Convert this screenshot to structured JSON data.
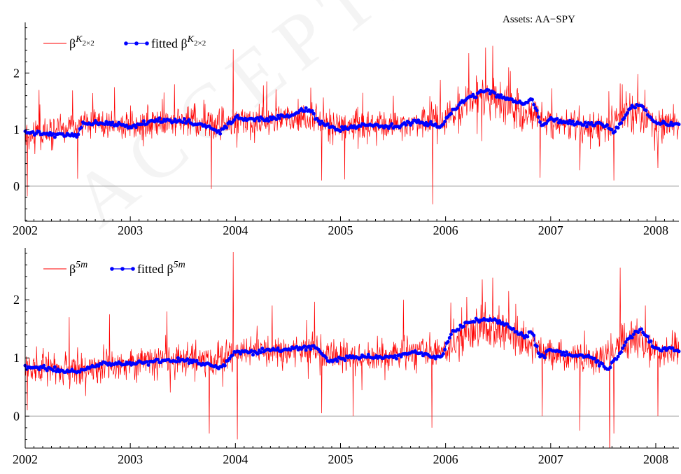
{
  "annotation": "Assets: AA−SPY",
  "watermark_text": "ACCEPTED MANUSCRIPT",
  "colors": {
    "raw": "#ff0000",
    "fitted": "#0000ff",
    "zero_line": "#999999",
    "axis": "#000000"
  },
  "chart_data": [
    {
      "type": "line",
      "title": "",
      "xlabel": "",
      "ylabel": "",
      "xlim": [
        2002.0,
        2008.22
      ],
      "ylim": [
        -0.62,
        2.82
      ],
      "x_ticks": [
        "2002",
        "2003",
        "2004",
        "2005",
        "2006",
        "2007",
        "2008"
      ],
      "y_ticks": [
        "0",
        "1",
        "2"
      ],
      "zero_line": true,
      "grid": false,
      "legend": "top-left",
      "legend_entries": [
        {
          "base": "β",
          "sup": "K",
          "sub": "2×2"
        },
        {
          "prefix": "fitted ",
          "base": "β",
          "sup": "K",
          "sub": "2×2"
        }
      ],
      "series": [
        {
          "kind": "raw",
          "x": [
            2002.0,
            2002.25,
            2002.5,
            2002.75,
            2003.0,
            2003.25,
            2003.5,
            2003.75,
            2004.0,
            2004.25,
            2004.5,
            2004.75,
            2005.0,
            2005.25,
            2005.5,
            2005.75,
            2006.0,
            2006.25,
            2006.5,
            2006.75,
            2007.0,
            2007.25,
            2007.5,
            2007.75,
            2008.0,
            2008.22
          ],
          "values": [
            0.92,
            0.95,
            1.08,
            1.1,
            1.05,
            1.12,
            1.15,
            1.08,
            1.12,
            1.15,
            1.2,
            1.18,
            1.05,
            1.1,
            1.08,
            1.12,
            1.2,
            1.5,
            1.55,
            1.3,
            1.1,
            1.05,
            1.0,
            1.35,
            1.1,
            1.1
          ],
          "spikes": [
            [
              2002.02,
              -0.18
            ],
            [
              2002.13,
              1.7
            ],
            [
              2002.5,
              0.13
            ],
            [
              2002.85,
              1.75
            ],
            [
              2003.42,
              1.8
            ],
            [
              2003.77,
              -0.05
            ],
            [
              2003.98,
              2.42
            ],
            [
              2004.3,
              1.85
            ],
            [
              2004.82,
              0.1
            ],
            [
              2005.04,
              0.12
            ],
            [
              2005.21,
              1.65
            ],
            [
              2005.88,
              -0.32
            ],
            [
              2005.95,
              1.88
            ],
            [
              2006.22,
              2.35
            ],
            [
              2006.38,
              2.45
            ],
            [
              2006.45,
              2.48
            ],
            [
              2006.6,
              2.1
            ],
            [
              2006.9,
              0.15
            ],
            [
              2007.28,
              0.28
            ],
            [
              2007.6,
              0.1
            ],
            [
              2007.68,
              1.8
            ],
            [
              2007.83,
              1.98
            ],
            [
              2008.02,
              0.32
            ],
            [
              2008.17,
              1.45
            ]
          ]
        },
        {
          "kind": "fitted",
          "x": [
            2002.0,
            2002.5,
            2002.55,
            2002.75,
            2003.0,
            2003.25,
            2003.5,
            2003.75,
            2003.85,
            2004.0,
            2004.25,
            2004.5,
            2004.7,
            2004.8,
            2005.0,
            2005.25,
            2005.5,
            2005.75,
            2005.95,
            2006.1,
            2006.25,
            2006.4,
            2006.5,
            2006.75,
            2006.82,
            2006.92,
            2007.0,
            2007.25,
            2007.5,
            2007.6,
            2007.75,
            2007.85,
            2008.0,
            2008.22
          ],
          "values": [
            0.95,
            0.9,
            1.12,
            1.12,
            1.05,
            1.15,
            1.15,
            1.05,
            0.95,
            1.2,
            1.18,
            1.25,
            1.35,
            1.12,
            1.0,
            1.08,
            1.05,
            1.15,
            1.05,
            1.4,
            1.6,
            1.7,
            1.6,
            1.45,
            1.55,
            1.05,
            1.2,
            1.1,
            1.1,
            0.95,
            1.35,
            1.45,
            1.1,
            1.1
          ]
        }
      ]
    },
    {
      "type": "line",
      "title": "",
      "xlabel": "",
      "ylabel": "",
      "xlim": [
        2002.0,
        2008.22
      ],
      "ylim": [
        -0.55,
        2.82
      ],
      "x_ticks": [
        "2002",
        "2003",
        "2004",
        "2005",
        "2006",
        "2007",
        "2008"
      ],
      "y_ticks": [
        "0",
        "1",
        "2"
      ],
      "zero_line": true,
      "grid": false,
      "legend": "top-left",
      "legend_entries": [
        {
          "base": "β",
          "sup": "5m",
          "sub": ""
        },
        {
          "prefix": "fitted ",
          "base": "β",
          "sup": "5m",
          "sub": ""
        }
      ],
      "series": [
        {
          "kind": "raw",
          "x": [
            2002.0,
            2002.25,
            2002.5,
            2002.75,
            2003.0,
            2003.25,
            2003.5,
            2003.75,
            2004.0,
            2004.25,
            2004.5,
            2004.75,
            2005.0,
            2005.25,
            2005.5,
            2005.75,
            2006.0,
            2006.25,
            2006.5,
            2006.75,
            2007.0,
            2007.25,
            2007.5,
            2007.75,
            2008.0,
            2008.22
          ],
          "values": [
            0.82,
            0.8,
            0.78,
            0.88,
            0.9,
            0.95,
            1.0,
            0.95,
            1.08,
            1.12,
            1.1,
            1.15,
            1.02,
            1.0,
            1.05,
            1.08,
            1.12,
            1.5,
            1.55,
            1.3,
            1.05,
            1.0,
            1.0,
            1.4,
            1.1,
            1.12
          ],
          "spikes": [
            [
              2002.02,
              0.1
            ],
            [
              2002.42,
              1.7
            ],
            [
              2002.8,
              1.75
            ],
            [
              2003.35,
              1.8
            ],
            [
              2003.75,
              -0.3
            ],
            [
              2003.98,
              2.82
            ],
            [
              2004.02,
              -0.4
            ],
            [
              2004.35,
              1.9
            ],
            [
              2004.82,
              0.05
            ],
            [
              2005.12,
              0.0
            ],
            [
              2005.6,
              2.0
            ],
            [
              2005.87,
              -0.2
            ],
            [
              2006.05,
              1.95
            ],
            [
              2006.2,
              2.05
            ],
            [
              2006.35,
              2.35
            ],
            [
              2006.45,
              2.38
            ],
            [
              2006.6,
              2.15
            ],
            [
              2006.92,
              0.0
            ],
            [
              2007.28,
              -0.25
            ],
            [
              2007.56,
              -0.9
            ],
            [
              2007.6,
              -0.3
            ],
            [
              2007.66,
              2.55
            ],
            [
              2007.9,
              1.9
            ],
            [
              2008.02,
              0.0
            ],
            [
              2008.18,
              1.45
            ]
          ]
        },
        {
          "kind": "fitted",
          "x": [
            2002.0,
            2002.25,
            2002.5,
            2002.75,
            2003.0,
            2003.25,
            2003.5,
            2003.75,
            2003.85,
            2004.0,
            2004.25,
            2004.5,
            2004.75,
            2004.9,
            2005.0,
            2005.25,
            2005.5,
            2005.7,
            2005.95,
            2006.05,
            2006.2,
            2006.45,
            2006.6,
            2006.75,
            2006.82,
            2006.9,
            2007.0,
            2007.2,
            2007.4,
            2007.55,
            2007.75,
            2007.85,
            2008.0,
            2008.22
          ],
          "values": [
            0.85,
            0.8,
            0.75,
            0.9,
            0.9,
            0.95,
            0.95,
            0.9,
            0.8,
            1.1,
            1.12,
            1.15,
            1.2,
            0.95,
            1.0,
            1.02,
            1.0,
            1.1,
            1.0,
            1.4,
            1.6,
            1.68,
            1.55,
            1.35,
            1.45,
            1.0,
            1.15,
            1.05,
            1.0,
            0.8,
            1.35,
            1.5,
            1.15,
            1.15
          ]
        }
      ]
    }
  ]
}
